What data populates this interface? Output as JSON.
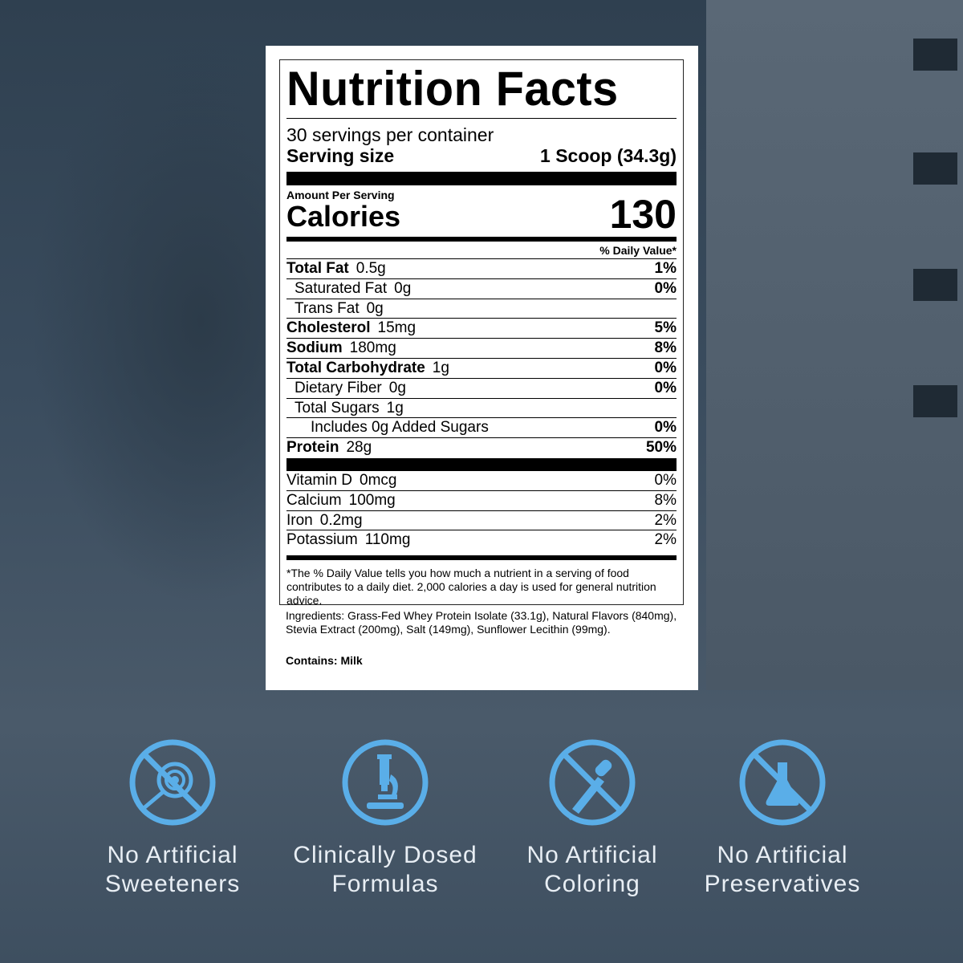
{
  "label": {
    "title": "Nutrition Facts",
    "servings": "30 servings per container",
    "serving_size_label": "Serving size",
    "serving_size_value": "1 Scoop (34.3g)",
    "amount_per_serving": "Amount Per Serving",
    "calories_label": "Calories",
    "calories_value": "130",
    "dv_header": "% Daily Value*",
    "nutrients": [
      {
        "name": "Total Fat",
        "amount": "0.5g",
        "dv": "1%"
      },
      {
        "name": "Saturated Fat",
        "amount": "0g",
        "dv": "0%"
      },
      {
        "name": "Trans Fat",
        "amount": "0g",
        "dv": ""
      },
      {
        "name": "Cholesterol",
        "amount": "15mg",
        "dv": "5%"
      },
      {
        "name": "Sodium",
        "amount": "180mg",
        "dv": "8%"
      },
      {
        "name": "Total Carbohydrate",
        "amount": "1g",
        "dv": "0%"
      },
      {
        "name": "Dietary Fiber",
        "amount": "0g",
        "dv": "0%"
      },
      {
        "name": "Total Sugars",
        "amount": "1g",
        "dv": ""
      },
      {
        "name": "Includes 0g Added Sugars",
        "amount": "",
        "dv": "0%"
      },
      {
        "name": "Protein",
        "amount": "28g",
        "dv": "50%"
      }
    ],
    "vitamins": [
      {
        "name": "Vitamin D",
        "amount": "0mcg",
        "dv": "0%"
      },
      {
        "name": "Calcium",
        "amount": "100mg",
        "dv": "8%"
      },
      {
        "name": "Iron",
        "amount": "0.2mg",
        "dv": "2%"
      },
      {
        "name": "Potassium",
        "amount": "110mg",
        "dv": "2%"
      }
    ],
    "footnote": "*The % Daily Value tells you how much a nutrient in a serving of food contributes to a daily diet. 2,000 calories a day is used for general nutrition advice.",
    "ingredients": "Ingredients: Grass-Fed Whey Protein Isolate (33.1g), Natural Flavors (840mg), Stevia Extract (200mg), Salt (149mg), Sunflower Lecithin (99mg).",
    "contains": "Contains: Milk"
  },
  "features": [
    {
      "icon": "no-sweetener-icon",
      "line1": "No Artificial",
      "line2": "Sweeteners"
    },
    {
      "icon": "microscope-icon",
      "line1": "Clinically Dosed",
      "line2": "Formulas"
    },
    {
      "icon": "no-dropper-icon",
      "line1": "No Artificial",
      "line2": "Coloring"
    },
    {
      "icon": "no-flask-icon",
      "line1": "No Artificial",
      "line2": "Preservatives"
    }
  ],
  "colors": {
    "icon": "#5aaee8",
    "background": "#35475a",
    "text": "#e8eef4"
  }
}
